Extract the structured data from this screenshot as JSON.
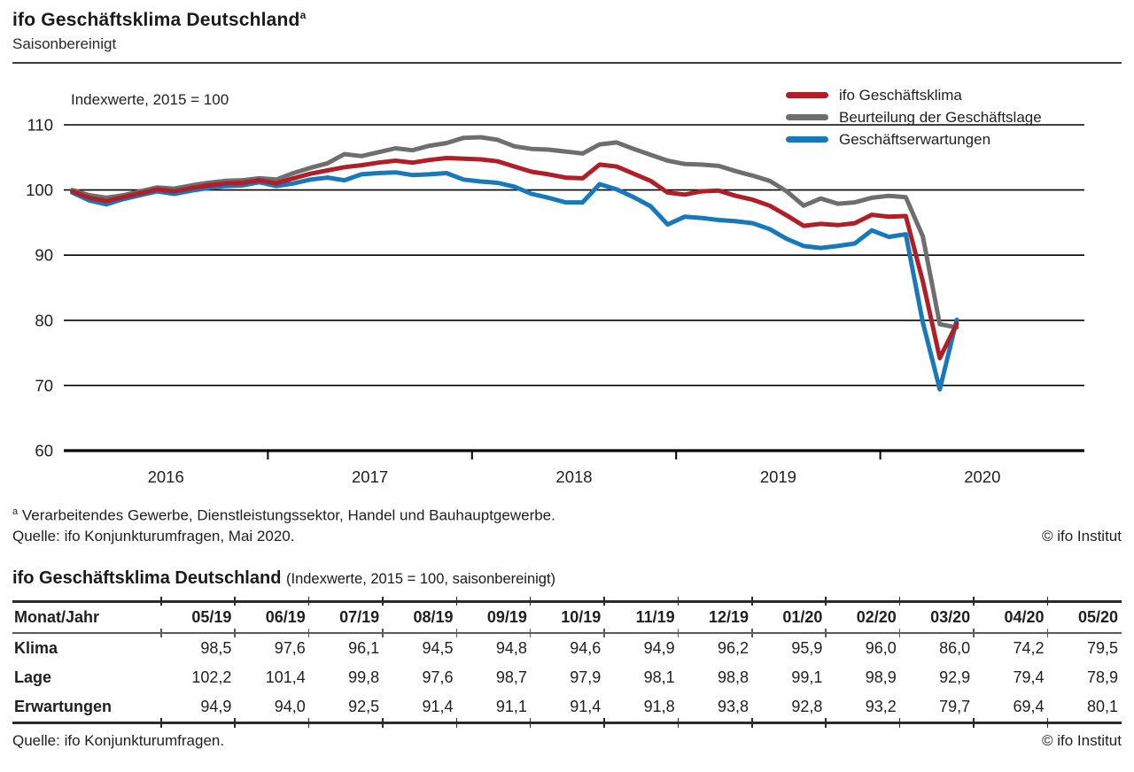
{
  "page": {
    "header": {
      "title": "ifo Geschäftsklima Deutschland",
      "title_sup": "a",
      "subtitle": "Saisonbereinigt"
    },
    "chart": {
      "axis_note": "Indexwerte, 2015 = 100",
      "footnote_sup": "a",
      "footnote_text": "Verarbeitendes Gewerbe, Dienstleistungssektor, Handel und Bauhauptgewerbe.",
      "source": "Quelle: ifo Konjunkturumfragen, Mai 2020.",
      "copyright": "© ifo Institut"
    },
    "table": {
      "title": "ifo Geschäftsklima Deutschland",
      "title_note": "(Indexwerte, 2015 = 100, saisonbereinigt)",
      "header": [
        "Monat/Jahr",
        "05/19",
        "06/19",
        "07/19",
        "08/19",
        "09/19",
        "10/19",
        "11/19",
        "12/19",
        "01/20",
        "02/20",
        "03/20",
        "04/20",
        "05/20"
      ],
      "rows": [
        {
          "label": "Klima",
          "values": [
            "98,5",
            "97,6",
            "96,1",
            "94,5",
            "94,8",
            "94,6",
            "94,9",
            "96,2",
            "95,9",
            "96,0",
            "86,0",
            "74,2",
            "79,5"
          ]
        },
        {
          "label": "Lage",
          "values": [
            "102,2",
            "101,4",
            "99,8",
            "97,6",
            "98,7",
            "97,9",
            "98,1",
            "98,8",
            "99,1",
            "98,9",
            "92,9",
            "79,4",
            "78,9"
          ]
        },
        {
          "label": "Erwartungen",
          "values": [
            "94,9",
            "94,0",
            "92,5",
            "91,4",
            "91,1",
            "91,4",
            "91,8",
            "93,8",
            "92,8",
            "93,2",
            "79,7",
            "69,4",
            "80,1"
          ]
        }
      ],
      "source": "Quelle: ifo Konjunkturumfragen.",
      "copyright": "© ifo Institut"
    }
  },
  "chart_data": {
    "type": "line",
    "title": "ifo Geschäftsklima Deutschland, saisonbereinigt",
    "ylabel": "Indexwerte, 2015 = 100",
    "ylim": [
      60,
      112
    ],
    "yticks": [
      110,
      100,
      90,
      80,
      70,
      60
    ],
    "xticks": [
      "2016",
      "2017",
      "2018",
      "2019",
      "2020"
    ],
    "x_unit": "month",
    "x_start": "2016-01",
    "x_end": "2020-05",
    "grid": "horizontal",
    "legend_position": "top-right",
    "axis_color": "#000000",
    "series": [
      {
        "name": "ifo Geschäftsklima",
        "color": "#b01f28",
        "values": [
          99.8,
          98.8,
          98.3,
          98.9,
          99.5,
          100.1,
          99.8,
          100.3,
          100.7,
          101.0,
          101.1,
          101.5,
          101.0,
          101.8,
          102.5,
          103.0,
          103.5,
          103.8,
          104.2,
          104.5,
          104.2,
          104.6,
          104.9,
          104.8,
          104.7,
          104.4,
          103.6,
          102.8,
          102.4,
          101.9,
          101.8,
          103.9,
          103.6,
          102.5,
          101.4,
          99.6,
          99.3,
          99.8,
          99.9,
          99.1,
          98.5,
          97.6,
          96.1,
          94.5,
          94.8,
          94.6,
          94.9,
          96.2,
          95.9,
          96.0,
          86.0,
          74.2,
          79.5
        ]
      },
      {
        "name": "Beurteilung der Geschäftslage",
        "color": "#6e6e6e",
        "values": [
          100.0,
          99.2,
          98.8,
          99.2,
          99.8,
          100.4,
          100.2,
          100.7,
          101.1,
          101.4,
          101.5,
          101.8,
          101.6,
          102.6,
          103.4,
          104.1,
          105.5,
          105.2,
          105.8,
          106.4,
          106.1,
          106.8,
          107.2,
          108.0,
          108.1,
          107.7,
          106.7,
          106.3,
          106.2,
          105.9,
          105.6,
          107.0,
          107.3,
          106.3,
          105.4,
          104.5,
          104.0,
          103.9,
          103.7,
          102.9,
          102.2,
          101.4,
          99.8,
          97.6,
          98.7,
          97.9,
          98.1,
          98.8,
          99.1,
          98.9,
          92.9,
          79.4,
          78.9
        ]
      },
      {
        "name": "Geschäftserwartungen",
        "color": "#1778bc",
        "values": [
          99.6,
          98.4,
          97.8,
          98.6,
          99.2,
          99.8,
          99.4,
          99.9,
          100.3,
          100.6,
          100.7,
          101.2,
          100.6,
          101.0,
          101.6,
          101.9,
          101.5,
          102.4,
          102.6,
          102.7,
          102.3,
          102.4,
          102.6,
          101.6,
          101.3,
          101.1,
          100.5,
          99.4,
          98.8,
          98.1,
          98.1,
          100.9,
          100.1,
          98.9,
          97.5,
          94.7,
          95.9,
          95.7,
          95.4,
          95.2,
          94.9,
          94.0,
          92.5,
          91.4,
          91.1,
          91.4,
          91.8,
          93.8,
          92.8,
          93.2,
          79.7,
          69.4,
          80.1
        ]
      }
    ],
    "note_last13_exact_from_table": true
  }
}
